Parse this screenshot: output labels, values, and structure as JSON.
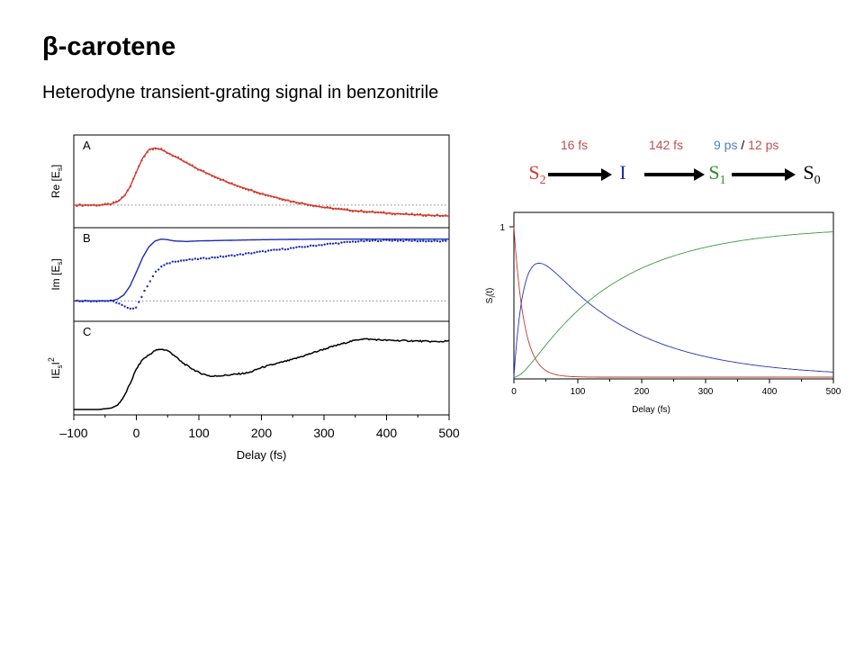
{
  "slide": {
    "title": "β-carotene",
    "subtitle": "Heterodyne transient-grating signal in benzonitrile"
  },
  "colors": {
    "red": "#d03a2e",
    "blue": "#1b2bb3",
    "green": "#3d9a3d",
    "black": "#000000",
    "grey_dotted": "#888888",
    "rate_red": "#c0504d",
    "rate_blue": "#4f81bd"
  },
  "scheme": {
    "states": [
      {
        "main": "S",
        "sub": "2",
        "color": "#d03a2e"
      },
      {
        "main": "I",
        "sub": "",
        "color": "#1b2bb3"
      },
      {
        "main": "S",
        "sub": "1",
        "color": "#2e8b2e"
      },
      {
        "main": "S",
        "sub": "0",
        "color": "#000000"
      }
    ],
    "rates": {
      "r1": "16 fs",
      "r2": "142 fs",
      "r3a": "9 ps",
      "sep": "/",
      "r3b": "12 ps"
    }
  },
  "chart_data": [
    {
      "type": "line",
      "id": "left-stack",
      "xlabel": "Delay (fs)",
      "xlim": [
        -100,
        500
      ],
      "xticks": [
        -100,
        0,
        100,
        200,
        300,
        400,
        500
      ],
      "xtick_labels": [
        "–100",
        "0",
        "100",
        "200",
        "300",
        "400",
        "500"
      ],
      "panels": [
        {
          "letter": "A",
          "ylabel": "Re [E",
          "ylabel_sub": "s",
          "ylabel_tail": "]",
          "ylim": [
            -0.3,
            1.1
          ],
          "baseline": 0,
          "fit": {
            "color": "#d03a2e",
            "x": [
              -100,
              -60,
              -40,
              -30,
              -20,
              -10,
              0,
              10,
              20,
              30,
              40,
              60,
              80,
              100,
              150,
              200,
              250,
              300,
              350,
              400,
              450,
              500
            ],
            "y": [
              0,
              0,
              0.02,
              0.06,
              0.15,
              0.32,
              0.58,
              0.82,
              0.97,
              1.0,
              0.97,
              0.86,
              0.74,
              0.62,
              0.38,
              0.2,
              0.06,
              -0.04,
              -0.1,
              -0.14,
              -0.17,
              -0.19
            ]
          },
          "points": {
            "color": "#d03a2e",
            "style": "dots"
          }
        },
        {
          "letter": "B",
          "ylabel": "Im [E",
          "ylabel_sub": "s",
          "ylabel_tail": "]",
          "ylim": [
            -0.25,
            1.1
          ],
          "baseline": 0,
          "fit": {
            "color": "#1b2bb3",
            "x": [
              -100,
              -40,
              -30,
              -20,
              -10,
              0,
              10,
              20,
              30,
              40,
              50,
              60,
              80,
              100,
              150,
              200,
              300,
              400,
              500
            ],
            "y": [
              0,
              0,
              0.03,
              0.1,
              0.25,
              0.48,
              0.72,
              0.9,
              1.0,
              1.03,
              1.02,
              1.0,
              0.99,
              1.0,
              1.01,
              1.02,
              1.03,
              1.03,
              1.03
            ]
          },
          "data": {
            "color": "#1b2bb3",
            "style": "dots",
            "x": [
              -100,
              -40,
              -30,
              -20,
              -10,
              0,
              10,
              20,
              30,
              40,
              50,
              60,
              80,
              100,
              150,
              200,
              250,
              300,
              350,
              400,
              450,
              500
            ],
            "y": [
              0,
              0,
              -0.03,
              -0.09,
              -0.14,
              -0.1,
              0.1,
              0.3,
              0.47,
              0.57,
              0.62,
              0.66,
              0.68,
              0.7,
              0.75,
              0.82,
              0.88,
              0.94,
              0.99,
              1.01,
              1.0,
              0.99
            ]
          }
        },
        {
          "letter": "C",
          "ylabel": "IE",
          "ylabel_sub": "s",
          "ylabel_tail": "I",
          "ylabel_sup": "2",
          "ylim": [
            0,
            1.1
          ],
          "trace": {
            "color": "#000000",
            "x": [
              -100,
              -60,
              -40,
              -30,
              -20,
              -10,
              0,
              10,
              20,
              30,
              40,
              50,
              60,
              70,
              80,
              100,
              120,
              150,
              180,
              200,
              250,
              300,
              340,
              360,
              380,
              400,
              450,
              480,
              500
            ],
            "y": [
              0,
              0,
              0.02,
              0.06,
              0.17,
              0.35,
              0.55,
              0.68,
              0.74,
              0.8,
              0.82,
              0.8,
              0.74,
              0.66,
              0.6,
              0.5,
              0.45,
              0.47,
              0.5,
              0.57,
              0.68,
              0.82,
              0.92,
              0.96,
              0.95,
              0.94,
              0.93,
              0.92,
              0.93
            ]
          }
        }
      ]
    },
    {
      "type": "line",
      "id": "right-populations",
      "xlabel": "Delay (fs)",
      "ylabel": "S",
      "ylabel_sub": "i",
      "ylabel_tail": "(t)",
      "xlim": [
        0,
        500
      ],
      "ylim": [
        0,
        1
      ],
      "xticks": [
        0,
        100,
        200,
        300,
        400,
        500
      ],
      "yticks": [
        1
      ],
      "series": [
        {
          "color": "#c0392b",
          "model": "s2",
          "tau1": 16
        },
        {
          "color": "#2233bb",
          "model": "int",
          "tau1": 16,
          "tau2": 142
        },
        {
          "color": "#3d9a3d",
          "model": "s1",
          "tau1": 16,
          "tau2": 142
        }
      ]
    }
  ]
}
